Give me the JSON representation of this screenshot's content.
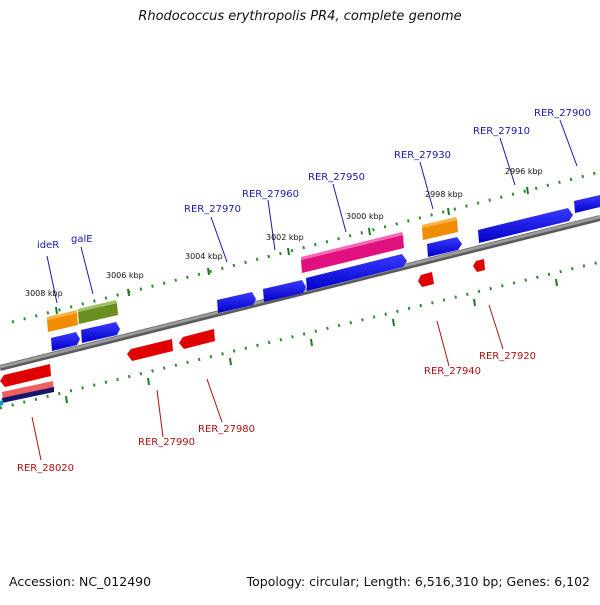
{
  "title": "Rhodococcus erythropolis PR4, complete genome",
  "accession_label": "Accession: NC_012490",
  "topology_label": "Topology: circular; Length: 6,516,310 bp; Genes: 6,102",
  "colors": {
    "backbone": "#8a8a8a",
    "ticks": "#2e8b2e",
    "upper_label": "#1a1aa8",
    "lower_label": "#b01010"
  },
  "scale_labels": [
    "3008 kbp",
    "3006 kbp",
    "3004 kbp",
    "3002 kbp",
    "3000 kbp",
    "2998 kbp",
    "2996 kbp"
  ],
  "upper_gene_labels": [
    "ideR",
    "galE",
    "RER_27970",
    "RER_27960",
    "RER_27950",
    "RER_27930",
    "RER_27910",
    "RER_27900"
  ],
  "lower_gene_labels": [
    "RER_28020",
    "RER_27990",
    "RER_27980",
    "RER_27940",
    "RER_27920"
  ]
}
